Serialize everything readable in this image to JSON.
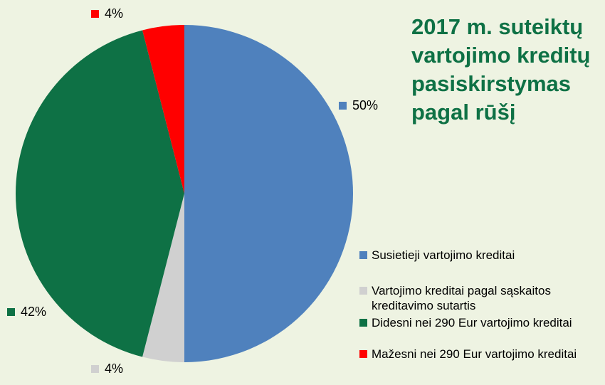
{
  "chart_data": {
    "type": "pie",
    "title": "2017 m. suteiktų vartojimo kreditų pasiskirstymas pagal rūšį",
    "legend_position": "right",
    "slices": [
      {
        "label": "Susietieji vartojimo kreditai",
        "value": 50,
        "display": "50%",
        "color": "#4f81bd"
      },
      {
        "label": "Vartojimo kreditai pagal sąskaitos kreditavimo sutartis",
        "value": 4,
        "display": "4%",
        "color": "#d0d0d0"
      },
      {
        "label": "Didesni nei 290 Eur vartojimo kreditai",
        "value": 42,
        "display": "42%",
        "color": "#0e7145"
      },
      {
        "label": "Mažesni nei 290 Eur vartojimo kreditai",
        "value": 4,
        "display": "4%",
        "color": "#ff0000"
      }
    ]
  }
}
